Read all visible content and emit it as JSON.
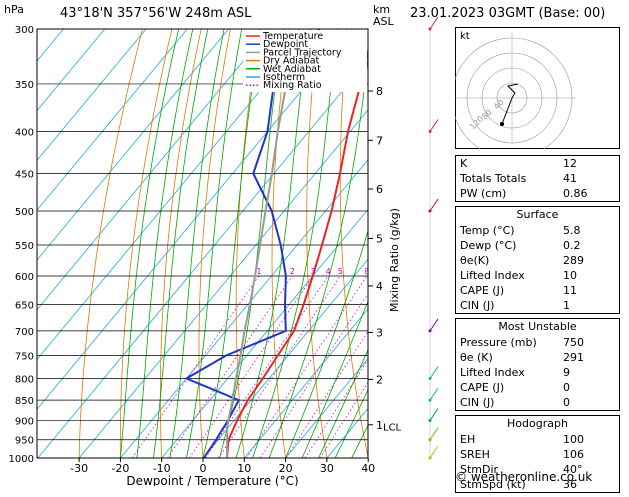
{
  "header": {
    "pressure_unit": "hPa",
    "location": "43°18'N  357°56'W  248m  ASL",
    "height_unit": "km",
    "height_unit_sub": "ASL",
    "date": "23.01.2023  03GMT  (Base: 00)"
  },
  "chart_data": {
    "type": "skew-t",
    "xlabel": "Dewpoint / Temperature (°C)",
    "ylabel": "hPa",
    "right_axis_label": "Mixing Ratio (g/kg)",
    "pressure_levels": [
      300,
      350,
      400,
      450,
      500,
      550,
      600,
      650,
      700,
      750,
      800,
      850,
      900,
      950,
      1000
    ],
    "x_ticks": [
      -30,
      -20,
      -10,
      0,
      10,
      20,
      30,
      40
    ],
    "xlim": [
      -35,
      40
    ],
    "ylim": [
      1000,
      300
    ],
    "km_ticks": [
      {
        "label": "8",
        "p": 357
      },
      {
        "label": "7",
        "p": 410
      },
      {
        "label": "6",
        "p": 470
      },
      {
        "label": "5",
        "p": 540
      },
      {
        "label": "4",
        "p": 617
      },
      {
        "label": "3",
        "p": 703
      },
      {
        "label": "2",
        "p": 802
      },
      {
        "label": "1",
        "p": 911
      }
    ],
    "lcl": {
      "label": "LCL",
      "p": 915
    },
    "mixing_ratio_labels": [
      "1",
      "2",
      "3",
      "4",
      "5",
      "8",
      "10",
      "15",
      "20",
      "25"
    ],
    "mixing_ratio_values": [
      1,
      2,
      3,
      4,
      5,
      8,
      10,
      15,
      20,
      25
    ],
    "legend": [
      {
        "name": "Temperature",
        "color": "#ee2222"
      },
      {
        "name": "Dewpoint",
        "color": "#2233cc"
      },
      {
        "name": "Parcel Trajectory",
        "color": "#999999"
      },
      {
        "name": "Dry Adiabat",
        "color": "#e07b00"
      },
      {
        "name": "Wet Adiabat",
        "color": "#00aa00"
      },
      {
        "name": "Isotherm",
        "color": "#22aadd"
      },
      {
        "name": "Mixing Ratio",
        "color": "#cc00cc"
      }
    ],
    "series": [
      {
        "name": "Temperature",
        "color": "#ee2222",
        "points": [
          [
            1000,
            5.8
          ],
          [
            950,
            2.5
          ],
          [
            900,
            0.7
          ],
          [
            850,
            -0.8
          ],
          [
            800,
            -1.5
          ],
          [
            750,
            -2.5
          ],
          [
            700,
            -3.5
          ],
          [
            650,
            -6.5
          ],
          [
            600,
            -10
          ],
          [
            550,
            -14
          ],
          [
            500,
            -18.5
          ],
          [
            450,
            -24
          ],
          [
            400,
            -30.5
          ],
          [
            350,
            -37
          ],
          [
            300,
            -45
          ]
        ]
      },
      {
        "name": "Dewpoint",
        "color": "#2233cc",
        "points": [
          [
            1000,
            0.2
          ],
          [
            950,
            -0.5
          ],
          [
            900,
            -1.5
          ],
          [
            850,
            -3
          ],
          [
            800,
            -20
          ],
          [
            750,
            -15
          ],
          [
            700,
            -5.5
          ],
          [
            650,
            -11
          ],
          [
            600,
            -16.5
          ],
          [
            550,
            -24
          ],
          [
            500,
            -33
          ],
          [
            450,
            -45
          ],
          [
            400,
            -50
          ],
          [
            350,
            -58
          ],
          [
            300,
            -58
          ]
        ]
      },
      {
        "name": "Parcel Trajectory",
        "color": "#999999",
        "points": [
          [
            1000,
            5.8
          ],
          [
            915,
            -0.5
          ],
          [
            850,
            -4.5
          ],
          [
            800,
            -8
          ],
          [
            750,
            -11.5
          ],
          [
            700,
            -15.5
          ],
          [
            650,
            -19.5
          ],
          [
            600,
            -24
          ],
          [
            550,
            -29
          ],
          [
            500,
            -34.5
          ],
          [
            450,
            -40.5
          ],
          [
            400,
            -47.5
          ],
          [
            350,
            -55
          ],
          [
            300,
            -63
          ]
        ]
      }
    ]
  },
  "indices": {
    "rows": [
      {
        "label": "K",
        "value": "12"
      },
      {
        "label": "Totals Totals",
        "value": "41"
      },
      {
        "label": "PW (cm)",
        "value": "0.86"
      }
    ],
    "surface": {
      "title": "Surface",
      "rows": [
        {
          "label": "Temp (°C)",
          "value": "5.8"
        },
        {
          "label": "Dewp (°C)",
          "value": "0.2"
        },
        {
          "label": "θe(K)",
          "value": "289"
        },
        {
          "label": "Lifted Index",
          "value": "10"
        },
        {
          "label": "CAPE (J)",
          "value": "11"
        },
        {
          "label": "CIN (J)",
          "value": "1"
        }
      ]
    },
    "most_unstable": {
      "title": "Most Unstable",
      "rows": [
        {
          "label": "Pressure (mb)",
          "value": "750"
        },
        {
          "label": "θe (K)",
          "value": "291"
        },
        {
          "label": "Lifted Index",
          "value": "9"
        },
        {
          "label": "CAPE (J)",
          "value": "0"
        },
        {
          "label": "CIN (J)",
          "value": "0"
        }
      ]
    },
    "hodograph": {
      "title": "Hodograph",
      "rows": [
        {
          "label": "EH",
          "value": "100"
        },
        {
          "label": "SREH",
          "value": "106"
        },
        {
          "label": "StmDir",
          "value": "40°"
        },
        {
          "label": "StmSpd (kt)",
          "value": "36"
        }
      ]
    }
  },
  "hodo": {
    "unit_label": "kt",
    "ring_labels": [
      "120",
      "80",
      "40"
    ]
  },
  "colors": {
    "temperature": "#ee2222",
    "dewpoint": "#2233cc",
    "parcel": "#999999",
    "dry_adiabat": "#e07b00",
    "wet_adiabat": "#00aa00",
    "isotherm": "#22aadd",
    "mixing_ratio": "#cc00cc"
  },
  "copyright": "© weatheronline.co.uk"
}
